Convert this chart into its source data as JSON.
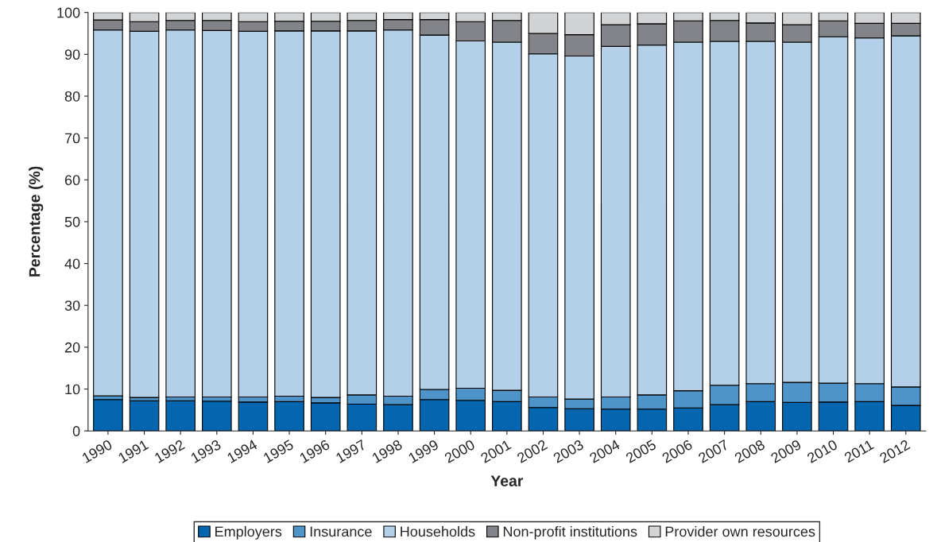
{
  "chart_data": {
    "type": "bar",
    "stacked": true,
    "xlabel": "Year",
    "ylabel": "Percentage (%)",
    "categories": [
      "1990",
      "1991",
      "1992",
      "1993",
      "1994",
      "1995",
      "1996",
      "1997",
      "1998",
      "1999",
      "2000",
      "2001",
      "2002",
      "2003",
      "2004",
      "2005",
      "2006",
      "2007",
      "2008",
      "2009",
      "2010",
      "2011",
      "2012"
    ],
    "series": [
      {
        "name": "Employers",
        "color": "#0566b0",
        "values": [
          7.5,
          7.2,
          7.2,
          7.1,
          6.9,
          7.0,
          6.7,
          6.4,
          6.3,
          7.5,
          7.3,
          7.0,
          5.6,
          5.3,
          5.2,
          5.2,
          5.5,
          6.3,
          7.0,
          6.8,
          6.9,
          7.0,
          6.1
        ]
      },
      {
        "name": "Insurance",
        "color": "#4f94c9",
        "values": [
          0.9,
          0.8,
          0.9,
          1.0,
          1.2,
          1.3,
          1.3,
          2.2,
          2.0,
          2.4,
          2.9,
          2.7,
          2.5,
          2.3,
          2.9,
          3.4,
          4.1,
          4.6,
          4.3,
          4.8,
          4.5,
          4.3,
          4.4
        ]
      },
      {
        "name": "Households",
        "color": "#b3d0e8",
        "values": [
          87.4,
          87.5,
          87.7,
          87.6,
          87.4,
          87.3,
          87.6,
          87.0,
          87.5,
          84.7,
          83.0,
          83.2,
          82.0,
          82.0,
          83.8,
          83.6,
          83.3,
          82.2,
          81.8,
          81.3,
          82.8,
          82.6,
          83.9
        ]
      },
      {
        "name": "Non-profit institutions",
        "color": "#838489",
        "values": [
          2.4,
          2.3,
          2.3,
          2.4,
          2.3,
          2.3,
          2.3,
          2.5,
          2.5,
          3.7,
          4.6,
          5.2,
          4.9,
          5.1,
          5.2,
          5.1,
          5.1,
          5.0,
          4.4,
          4.2,
          3.8,
          3.5,
          3.0
        ]
      },
      {
        "name": "Provider own resources",
        "color": "#d2d3d5",
        "values": [
          1.8,
          2.2,
          1.9,
          1.9,
          2.2,
          2.1,
          2.1,
          1.9,
          1.7,
          1.7,
          2.2,
          1.9,
          5.0,
          5.3,
          2.9,
          2.7,
          2.0,
          1.9,
          2.5,
          2.9,
          2.0,
          2.6,
          2.6
        ]
      }
    ],
    "ylim": [
      0,
      100
    ],
    "yticks": [
      0,
      10,
      20,
      30,
      40,
      50,
      60,
      70,
      80,
      90,
      100
    ],
    "grid": false,
    "legend": "bottom"
  }
}
